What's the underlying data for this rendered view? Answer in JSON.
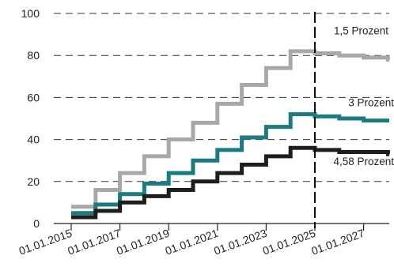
{
  "chart_data": {
    "type": "line",
    "step": true,
    "title": "",
    "xlabel": "",
    "ylabel": "",
    "ylim": [
      0,
      100
    ],
    "yticks": [
      0,
      20,
      40,
      60,
      80,
      100
    ],
    "xlim": [
      2015,
      2028.3
    ],
    "xticks": [
      {
        "year": 2015,
        "label": "01.01.2015"
      },
      {
        "year": 2017,
        "label": "01.01.2017"
      },
      {
        "year": 2019,
        "label": "01.01.2019"
      },
      {
        "year": 2021,
        "label": "01.01.2021"
      },
      {
        "year": 2023,
        "label": "01.01.2023"
      },
      {
        "year": 2025,
        "label": "01.01.2025"
      },
      {
        "year": 2027,
        "label": "01.01.2027"
      }
    ],
    "grid": {
      "horizontal": true,
      "style": "dashed"
    },
    "reference_line": {
      "x": 2025,
      "style": "dashed"
    },
    "series": [
      {
        "name": "1,5 Prozent",
        "color": "#a8a8a8",
        "x": [
          2015,
          2016,
          2017,
          2018,
          2019,
          2020,
          2021,
          2022,
          2023,
          2024,
          2025,
          2026,
          2027,
          2028
        ],
        "values": [
          8,
          16,
          24,
          32,
          40,
          48,
          57,
          66,
          74,
          82,
          81,
          80,
          79,
          78
        ]
      },
      {
        "name": "3 Prozent",
        "color": "#1a7c82",
        "x": [
          2015,
          2016,
          2017,
          2018,
          2019,
          2020,
          2021,
          2022,
          2023,
          2024,
          2025,
          2026,
          2027,
          2028
        ],
        "values": [
          5,
          9,
          14,
          19,
          24,
          30,
          35,
          41,
          46,
          52,
          51,
          50,
          49,
          49
        ]
      },
      {
        "name": "4,58 Prozent",
        "color": "#1e1e1e",
        "x": [
          2015,
          2016,
          2017,
          2018,
          2019,
          2020,
          2021,
          2022,
          2023,
          2024,
          2025,
          2026,
          2027,
          2028
        ],
        "values": [
          3,
          6,
          10,
          13,
          16,
          20,
          24,
          28,
          32,
          36,
          35,
          34,
          34,
          33
        ]
      }
    ]
  }
}
